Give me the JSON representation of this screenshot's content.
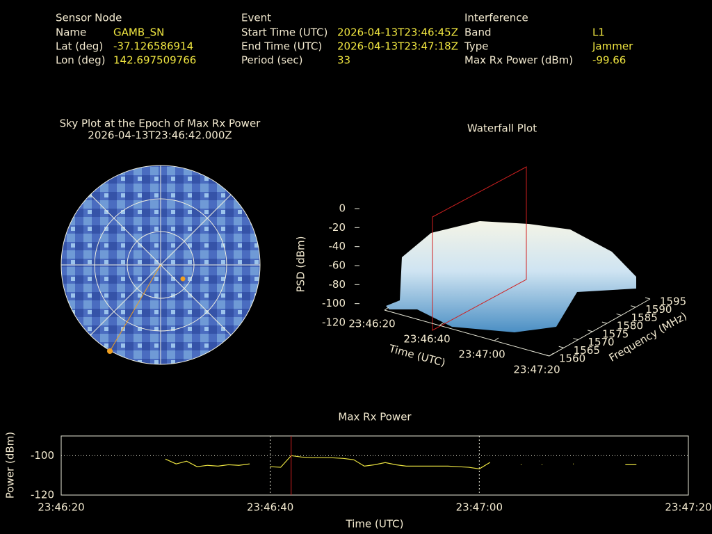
{
  "header": {
    "columns": [
      {
        "heading": "Sensor Node",
        "rows": [
          {
            "label": "Name",
            "value": "GAMB_SN"
          },
          {
            "label": "Lat (deg)",
            "value": "-37.126586914"
          },
          {
            "label": "Lon (deg)",
            "value": "142.697509766"
          }
        ]
      },
      {
        "heading": "Event",
        "rows": [
          {
            "label": "Start Time (UTC)",
            "value": "2026-04-13T23:46:45Z"
          },
          {
            "label": "End Time (UTC)",
            "value": "2026-04-13T23:47:18Z"
          },
          {
            "label": "Period (sec)",
            "value": "33"
          }
        ]
      },
      {
        "heading": "Interference",
        "rows": [
          {
            "label": "Band",
            "value": "L1"
          },
          {
            "label": "Type",
            "value": "Jammer"
          },
          {
            "label": "Max Rx Power (dBm)",
            "value": "-99.66"
          }
        ]
      }
    ]
  },
  "chart_data": [
    {
      "type": "polar",
      "title": "Sky Plot at the Epoch of Max Rx Power",
      "subtitle": "2026-04-13T23:46:42.000Z"
    },
    {
      "type": "surface",
      "title": "Waterfall Plot",
      "zlabel": "PSD (dBm)",
      "zlim": [
        -120,
        0
      ],
      "zticks": [
        0,
        -20,
        -40,
        -60,
        -80,
        -100,
        -120
      ],
      "xlabel": "Time (UTC)",
      "xlim": [
        "23:46:20",
        "23:47:20"
      ],
      "xticks": [
        "23:46:20",
        "23:46:40",
        "23:47:00",
        "23:47:20"
      ],
      "ylabel": "Frequency (MHz)",
      "ylim": [
        1560,
        1595
      ],
      "yticks": [
        1560,
        1565,
        1570,
        1575,
        1580,
        1585,
        1590,
        1595
      ]
    },
    {
      "type": "line",
      "title": "Max Rx Power",
      "xlabel": "Time (UTC)",
      "ylabel": "Power (dBm)",
      "xlim": [
        "23:46:20",
        "23:47:20"
      ],
      "xticks": [
        "23:46:20",
        "23:46:40",
        "23:47:00",
        "23:47:20"
      ],
      "ylim": [
        -120,
        -90
      ],
      "yticks": [
        -100,
        -120
      ],
      "grid": true,
      "marker_x": "23:46:42",
      "x": [
        "23:46:30",
        "23:46:31",
        "23:46:32",
        "23:46:33",
        "23:46:34",
        "23:46:35",
        "23:46:36",
        "23:46:37",
        "23:46:38",
        "23:46:39",
        "23:46:40",
        "23:46:41",
        "23:46:42",
        "23:46:43",
        "23:46:44",
        "23:46:45",
        "23:46:46",
        "23:46:47",
        "23:46:48",
        "23:46:49",
        "23:46:50",
        "23:46:51",
        "23:46:52",
        "23:46:53",
        "23:46:54",
        "23:46:55",
        "23:46:56",
        "23:46:57",
        "23:46:58",
        "23:46:59",
        "23:47:00",
        "23:47:01",
        "23:47:02",
        "23:47:03",
        "23:47:04",
        "23:47:05",
        "23:47:06",
        "23:47:07",
        "23:47:08",
        "23:47:09",
        "23:47:10",
        "23:47:11",
        "23:47:12",
        "23:47:13",
        "23:47:14",
        "23:47:15"
      ],
      "series": [
        {
          "name": "Max Rx Power",
          "color": "#e8e040",
          "values": [
            -101.8,
            -104.2,
            -102.8,
            -105.6,
            -104.9,
            -105.3,
            -104.6,
            -104.9,
            -104.2,
            null,
            -105.6,
            -105.9,
            -100.0,
            -100.7,
            -101.0,
            -101.0,
            -101.1,
            -101.4,
            -102.1,
            -105.3,
            -104.6,
            -103.5,
            -104.6,
            -105.3,
            -105.3,
            -105.3,
            -105.3,
            -105.3,
            -105.6,
            -105.9,
            -106.7,
            -103.5,
            null,
            null,
            -104.6,
            null,
            -104.6,
            null,
            null,
            -104.2,
            null,
            null,
            null,
            null,
            -104.6,
            -104.6
          ]
        }
      ]
    }
  ]
}
